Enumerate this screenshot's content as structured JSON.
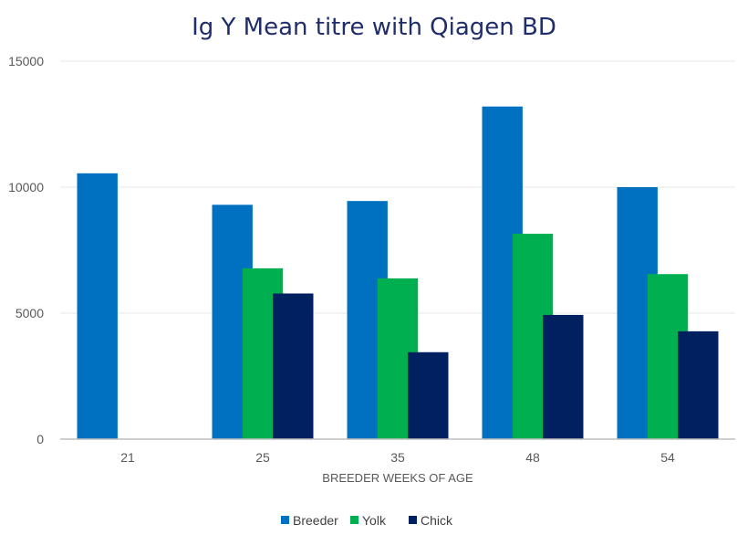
{
  "chart_data": {
    "type": "bar",
    "title": "Ig Y Mean titre with Qiagen BD",
    "xlabel": "BREEDER WEEKS OF AGE",
    "ylabel": "",
    "categories": [
      "21",
      "25",
      "35",
      "48",
      "54"
    ],
    "ylim": [
      0,
      15000
    ],
    "yticks": [
      0,
      5000,
      10000,
      15000
    ],
    "ytick_labels": [
      "0",
      "5000",
      "10000",
      "15000"
    ],
    "grid": true,
    "legend_position": "bottom",
    "series": [
      {
        "name": "Breeder",
        "color": "#0070C0",
        "values": [
          10550,
          9300,
          9450,
          13200,
          10000
        ]
      },
      {
        "name": "Yolk",
        "color": "#00B050",
        "values": [
          null,
          6780,
          6380,
          8150,
          6550
        ]
      },
      {
        "name": "Chick",
        "color": "#002060",
        "values": [
          null,
          5780,
          3450,
          4930,
          4280
        ]
      }
    ]
  }
}
